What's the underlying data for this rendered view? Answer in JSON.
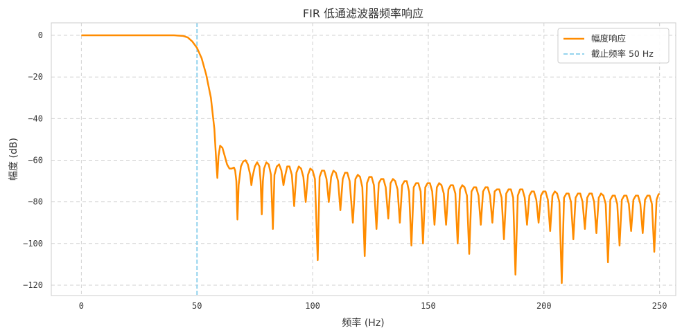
{
  "chart_data": {
    "type": "line",
    "title": "FIR 低通滤波器频率响应",
    "xlabel": "频率 (Hz)",
    "ylabel": "幅度 (dB)",
    "xlim": [
      -13,
      257
    ],
    "ylim": [
      -125,
      6
    ],
    "xticks": [
      0,
      50,
      100,
      150,
      200,
      250
    ],
    "yticks": [
      0,
      -20,
      -40,
      -60,
      -80,
      -100,
      -120
    ],
    "grid": true,
    "legend_position": "top-right",
    "cutoff": {
      "x": 50,
      "label": "截止频率 50 Hz",
      "color": "#87CEEB",
      "style": "dashed"
    },
    "series": [
      {
        "name": "幅度响应",
        "color": "#FF8C00",
        "points": [
          [
            0,
            0
          ],
          [
            10,
            0
          ],
          [
            20,
            0
          ],
          [
            30,
            0
          ],
          [
            40,
            0
          ],
          [
            44,
            -0.3
          ],
          [
            46,
            -1
          ],
          [
            48,
            -3
          ],
          [
            50,
            -6
          ],
          [
            52,
            -11
          ],
          [
            54,
            -19
          ],
          [
            56,
            -30
          ],
          [
            57.5,
            -45
          ],
          [
            58.3,
            -60
          ],
          [
            58.8,
            -68.5
          ],
          [
            59.3,
            -58
          ],
          [
            60,
            -53
          ],
          [
            61,
            -54
          ],
          [
            62,
            -58
          ],
          [
            63,
            -62
          ],
          [
            64,
            -64
          ],
          [
            65,
            -64
          ],
          [
            66,
            -63.5
          ],
          [
            66.5,
            -65
          ],
          [
            67,
            -70
          ],
          [
            67.5,
            -88.5
          ],
          [
            68,
            -72
          ],
          [
            69,
            -63
          ],
          [
            70,
            -60.5
          ],
          [
            71,
            -60
          ],
          [
            72,
            -62
          ],
          [
            73,
            -67
          ],
          [
            73.5,
            -72
          ],
          [
            74,
            -68
          ],
          [
            75,
            -63
          ],
          [
            76,
            -61
          ],
          [
            77,
            -63
          ],
          [
            77.5,
            -70
          ],
          [
            78,
            -86
          ],
          [
            78.5,
            -70
          ],
          [
            79,
            -64
          ],
          [
            80,
            -61
          ],
          [
            81,
            -62
          ],
          [
            82,
            -67
          ],
          [
            82.8,
            -93
          ],
          [
            83.5,
            -67
          ],
          [
            84.5,
            -63
          ],
          [
            85.5,
            -62
          ],
          [
            86.5,
            -65
          ],
          [
            87.4,
            -72
          ],
          [
            88,
            -68
          ],
          [
            89,
            -63
          ],
          [
            90,
            -63
          ],
          [
            91,
            -67
          ],
          [
            92,
            -82
          ],
          [
            93,
            -66
          ],
          [
            94,
            -63
          ],
          [
            95,
            -64
          ],
          [
            96,
            -68
          ],
          [
            97,
            -80
          ],
          [
            98,
            -67
          ],
          [
            99,
            -64
          ],
          [
            100,
            -65
          ],
          [
            101,
            -69
          ],
          [
            102.2,
            -108
          ],
          [
            103,
            -68
          ],
          [
            104,
            -65
          ],
          [
            105,
            -65
          ],
          [
            106,
            -69
          ],
          [
            107,
            -80
          ],
          [
            108,
            -68
          ],
          [
            109,
            -65
          ],
          [
            110,
            -66
          ],
          [
            111,
            -70
          ],
          [
            112,
            -84
          ],
          [
            113,
            -69
          ],
          [
            114,
            -66
          ],
          [
            115,
            -66
          ],
          [
            116,
            -70
          ],
          [
            117.4,
            -90
          ],
          [
            118.5,
            -69
          ],
          [
            119.5,
            -67
          ],
          [
            120.5,
            -68
          ],
          [
            121.5,
            -73
          ],
          [
            122.5,
            -106
          ],
          [
            123.5,
            -71
          ],
          [
            124.5,
            -68
          ],
          [
            125.5,
            -68
          ],
          [
            126.5,
            -72
          ],
          [
            127.6,
            -93
          ],
          [
            128.6,
            -71
          ],
          [
            129.6,
            -69
          ],
          [
            130.6,
            -69
          ],
          [
            131.6,
            -73
          ],
          [
            132.7,
            -88
          ],
          [
            133.7,
            -71
          ],
          [
            134.7,
            -69
          ],
          [
            135.7,
            -70
          ],
          [
            136.7,
            -74
          ],
          [
            137.7,
            -90
          ],
          [
            138.7,
            -72
          ],
          [
            139.7,
            -70
          ],
          [
            140.7,
            -70
          ],
          [
            141.7,
            -75
          ],
          [
            142.7,
            -101
          ],
          [
            143.7,
            -73
          ],
          [
            144.7,
            -71
          ],
          [
            145.7,
            -71
          ],
          [
            146.7,
            -75
          ],
          [
            147.7,
            -100
          ],
          [
            148.7,
            -73
          ],
          [
            149.7,
            -71
          ],
          [
            150.7,
            -71
          ],
          [
            151.7,
            -75
          ],
          [
            152.7,
            -91
          ],
          [
            153.7,
            -73
          ],
          [
            154.7,
            -71
          ],
          [
            155.7,
            -72
          ],
          [
            156.7,
            -76
          ],
          [
            157.7,
            -91
          ],
          [
            158.7,
            -74
          ],
          [
            159.7,
            -72
          ],
          [
            160.7,
            -72
          ],
          [
            161.7,
            -76
          ],
          [
            162.7,
            -100
          ],
          [
            163.7,
            -74
          ],
          [
            164.7,
            -72
          ],
          [
            165.7,
            -73
          ],
          [
            166.7,
            -77
          ],
          [
            167.7,
            -105
          ],
          [
            168.7,
            -75
          ],
          [
            169.7,
            -73
          ],
          [
            170.7,
            -73
          ],
          [
            171.7,
            -77
          ],
          [
            172.7,
            -91
          ],
          [
            173.7,
            -75
          ],
          [
            174.7,
            -73
          ],
          [
            175.7,
            -73
          ],
          [
            176.7,
            -77
          ],
          [
            177.7,
            -90
          ],
          [
            178.7,
            -75
          ],
          [
            179.7,
            -74
          ],
          [
            180.7,
            -74
          ],
          [
            181.7,
            -78
          ],
          [
            182.7,
            -98
          ],
          [
            183.7,
            -76
          ],
          [
            184.7,
            -74
          ],
          [
            185.7,
            -74
          ],
          [
            186.7,
            -78
          ],
          [
            187.7,
            -115
          ],
          [
            188.7,
            -77
          ],
          [
            189.7,
            -74
          ],
          [
            190.7,
            -74
          ],
          [
            191.7,
            -78
          ],
          [
            192.7,
            -91
          ],
          [
            193.7,
            -77
          ],
          [
            194.7,
            -75
          ],
          [
            195.7,
            -75
          ],
          [
            196.7,
            -79
          ],
          [
            197.7,
            -90
          ],
          [
            198.7,
            -77
          ],
          [
            199.7,
            -75
          ],
          [
            200.7,
            -75
          ],
          [
            201.7,
            -79
          ],
          [
            202.7,
            -94
          ],
          [
            203.7,
            -77
          ],
          [
            204.7,
            -75
          ],
          [
            205.7,
            -76
          ],
          [
            206.7,
            -80
          ],
          [
            207.7,
            -119
          ],
          [
            208.7,
            -78
          ],
          [
            209.7,
            -76
          ],
          [
            210.7,
            -76
          ],
          [
            211.7,
            -80
          ],
          [
            212.7,
            -98
          ],
          [
            213.7,
            -78
          ],
          [
            214.7,
            -76
          ],
          [
            215.7,
            -76
          ],
          [
            216.7,
            -80
          ],
          [
            217.7,
            -93
          ],
          [
            218.7,
            -78
          ],
          [
            219.7,
            -76
          ],
          [
            220.7,
            -76
          ],
          [
            221.7,
            -80
          ],
          [
            222.7,
            -95
          ],
          [
            223.7,
            -78
          ],
          [
            224.7,
            -76
          ],
          [
            225.7,
            -77
          ],
          [
            226.7,
            -81
          ],
          [
            227.7,
            -109
          ],
          [
            228.7,
            -79
          ],
          [
            229.7,
            -77
          ],
          [
            230.7,
            -77
          ],
          [
            231.7,
            -81
          ],
          [
            232.7,
            -101
          ],
          [
            233.7,
            -79
          ],
          [
            234.7,
            -77
          ],
          [
            235.7,
            -77
          ],
          [
            236.7,
            -81
          ],
          [
            237.7,
            -94
          ],
          [
            238.7,
            -79
          ],
          [
            239.7,
            -77
          ],
          [
            240.7,
            -77
          ],
          [
            241.7,
            -81
          ],
          [
            242.7,
            -95
          ],
          [
            243.7,
            -79
          ],
          [
            244.7,
            -77
          ],
          [
            245.7,
            -77
          ],
          [
            246.7,
            -81
          ],
          [
            247.7,
            -104
          ],
          [
            248.7,
            -79
          ],
          [
            249.5,
            -76.5
          ],
          [
            250,
            -76
          ]
        ]
      }
    ]
  }
}
